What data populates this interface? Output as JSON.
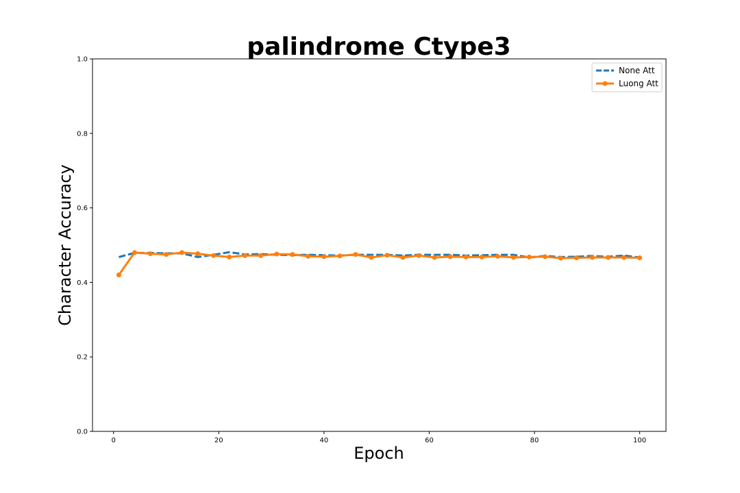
{
  "chart_data": {
    "type": "line",
    "title": "palindrome Ctype3",
    "xlabel": "Epoch",
    "ylabel": "Character Accuracy",
    "xlim": [
      -4,
      105
    ],
    "ylim": [
      0.0,
      1.0
    ],
    "xticks": [
      "0",
      "20",
      "40",
      "60",
      "80",
      "100"
    ],
    "yticks": [
      "0.0",
      "0.2",
      "0.4",
      "0.6",
      "0.8",
      "1.0"
    ],
    "grid": false,
    "legend_position": "top-right",
    "series": [
      {
        "name": "None Att",
        "color": "#1f77b4",
        "style": "dashed",
        "markers": false,
        "x": [
          1,
          4,
          7,
          10,
          13,
          16,
          19,
          22,
          25,
          28,
          31,
          34,
          37,
          40,
          43,
          46,
          49,
          52,
          55,
          58,
          61,
          64,
          67,
          70,
          73,
          76,
          79,
          82,
          85,
          88,
          91,
          94,
          97,
          100
        ],
        "y": [
          0.468,
          0.479,
          0.479,
          0.478,
          0.478,
          0.468,
          0.474,
          0.481,
          0.475,
          0.476,
          0.474,
          0.473,
          0.474,
          0.473,
          0.472,
          0.474,
          0.474,
          0.474,
          0.472,
          0.474,
          0.474,
          0.474,
          0.472,
          0.473,
          0.474,
          0.474,
          0.467,
          0.471,
          0.468,
          0.469,
          0.471,
          0.469,
          0.472,
          0.467
        ]
      },
      {
        "name": "Luong Att",
        "color": "#ff7f0e",
        "style": "solid",
        "markers": true,
        "x": [
          1,
          4,
          7,
          10,
          13,
          16,
          19,
          22,
          25,
          28,
          31,
          34,
          37,
          40,
          43,
          46,
          49,
          52,
          55,
          58,
          61,
          64,
          67,
          70,
          73,
          76,
          79,
          82,
          85,
          88,
          91,
          94,
          97,
          100
        ],
        "y": [
          0.42,
          0.48,
          0.477,
          0.475,
          0.48,
          0.477,
          0.472,
          0.468,
          0.472,
          0.472,
          0.476,
          0.475,
          0.47,
          0.469,
          0.471,
          0.475,
          0.467,
          0.473,
          0.467,
          0.472,
          0.467,
          0.469,
          0.468,
          0.468,
          0.47,
          0.467,
          0.468,
          0.469,
          0.465,
          0.466,
          0.467,
          0.467,
          0.467,
          0.466
        ]
      }
    ]
  }
}
